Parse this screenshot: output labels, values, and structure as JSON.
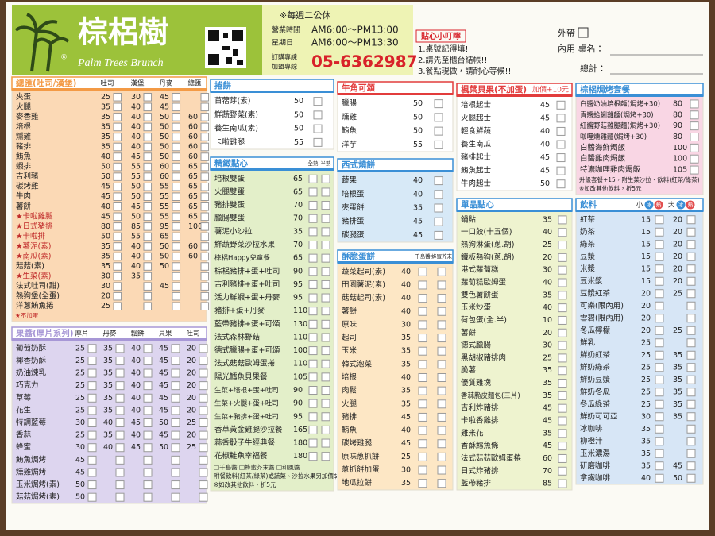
{
  "header": {
    "brand": "棕梠樹",
    "brand_en": "Palm Trees Brunch",
    "registered": "®",
    "closed": "※每週二公休",
    "hours_label": "營業時間",
    "hours": "AM6:00～PM13:00",
    "sunday_label": "星期日",
    "sunday_hours": "AM6:00～PM13:30",
    "order_line": "訂購專線",
    "franchise_line": "加盟專線",
    "phone": "05-6362987",
    "tips_title": "貼心小叮嚀",
    "tips": [
      "1.桌號記得填!!",
      "2.請先至櫃台結帳!!",
      "3.餐點現做，請耐心等候!!"
    ],
    "takeout": "外帶",
    "dine_in": "內用 桌名：",
    "total": "總計："
  },
  "sections": [
    {
      "title": "總匯(吐司/漢堡)",
      "columns": [
        "吐司",
        "漢堡",
        "丹麥",
        "總匯"
      ],
      "rows": [
        {
          "name": "夾蛋",
          "prices": [
            25,
            30,
            45,
            null
          ]
        },
        {
          "name": "火腿",
          "prices": [
            35,
            40,
            45,
            null
          ]
        },
        {
          "name": "麥香雞",
          "prices": [
            35,
            40,
            50,
            60
          ]
        },
        {
          "name": "培根",
          "prices": [
            35,
            40,
            50,
            60
          ]
        },
        {
          "name": "燻雞",
          "prices": [
            35,
            40,
            50,
            60
          ]
        },
        {
          "name": "豬排",
          "prices": [
            35,
            40,
            50,
            60
          ]
        },
        {
          "name": "鮪魚",
          "prices": [
            40,
            45,
            50,
            60
          ]
        },
        {
          "name": "蝦排",
          "prices": [
            50,
            55,
            60,
            65
          ]
        },
        {
          "name": "吉利豬",
          "prices": [
            50,
            55,
            60,
            65
          ]
        },
        {
          "name": "碳烤雞",
          "prices": [
            45,
            50,
            55,
            65
          ]
        },
        {
          "name": "牛肉",
          "prices": [
            45,
            50,
            55,
            65
          ]
        },
        {
          "name": "薯餅",
          "prices": [
            40,
            45,
            55,
            65
          ]
        },
        {
          "name": "★卡啦雞腿",
          "prices": [
            45,
            50,
            55,
            65
          ]
        },
        {
          "name": "★日式豬排",
          "prices": [
            80,
            85,
            95,
            100
          ]
        },
        {
          "name": "★卡啦排",
          "prices": [
            50,
            55,
            65,
            null
          ]
        },
        {
          "name": "★薯泥(素)",
          "prices": [
            35,
            40,
            50,
            60
          ]
        },
        {
          "name": "★南瓜(素)",
          "prices": [
            35,
            40,
            50,
            60
          ]
        },
        {
          "name": "菇菇(素)",
          "prices": [
            35,
            40,
            50,
            null
          ]
        },
        {
          "name": "★生菜(素)",
          "prices": [
            30,
            35,
            null,
            null
          ]
        },
        {
          "name": "法式吐司(甜)",
          "prices": [
            30,
            null,
            45,
            null
          ]
        },
        {
          "name": "熱狗堡(全蛋)",
          "prices": [
            20,
            null,
            null,
            null
          ]
        },
        {
          "name": "洋蔥鮪魚捲",
          "prices": [
            25,
            null,
            null,
            null
          ]
        }
      ],
      "notes": [
        "★不加蛋"
      ]
    },
    {
      "title": "果醬(厚片系列)",
      "columns": [
        "厚片",
        "丹麥",
        "鬆餅",
        "貝果",
        "吐司"
      ],
      "rows": [
        {
          "name": "葡萄奶酥",
          "prices": [
            25,
            35,
            40,
            45,
            20
          ]
        },
        {
          "name": "椰香奶酥",
          "prices": [
            25,
            35,
            40,
            45,
            20
          ]
        },
        {
          "name": "奶油煉乳",
          "prices": [
            25,
            35,
            40,
            45,
            20
          ]
        },
        {
          "name": "巧克力",
          "prices": [
            25,
            35,
            40,
            45,
            20
          ]
        },
        {
          "name": "草莓",
          "prices": [
            25,
            35,
            40,
            45,
            20
          ]
        },
        {
          "name": "花生",
          "prices": [
            25,
            35,
            40,
            45,
            20
          ]
        },
        {
          "name": "特調藍莓",
          "prices": [
            30,
            40,
            45,
            50,
            25
          ]
        },
        {
          "name": "香蒜",
          "prices": [
            25,
            35,
            40,
            45,
            20
          ]
        },
        {
          "name": "蜂蜜",
          "prices": [
            30,
            40,
            45,
            50,
            25
          ]
        },
        {
          "name": "鮪魚焗烤",
          "prices": [
            45,
            null,
            null,
            null,
            null
          ]
        },
        {
          "name": "燻雞焗烤",
          "prices": [
            45,
            null,
            null,
            null,
            null
          ]
        },
        {
          "name": "玉米焗烤(素)",
          "prices": [
            50,
            null,
            null,
            null,
            null
          ]
        },
        {
          "name": "菇菇焗烤(素)",
          "prices": [
            50,
            null,
            null,
            null,
            null
          ]
        }
      ]
    },
    {
      "title": "捲餅",
      "rows": [
        {
          "name": "苜蓿芽(素)",
          "prices": [
            50
          ]
        },
        {
          "name": "鮮蔬野菜(素)",
          "prices": [
            50
          ]
        },
        {
          "name": "養生南瓜(素)",
          "prices": [
            50
          ]
        },
        {
          "name": "卡啦雞腿",
          "prices": [
            55
          ]
        }
      ]
    },
    {
      "title": "精緻點心",
      "columns": [
        "全熟",
        "半熟"
      ],
      "rows": [
        {
          "name": "培根雙蛋",
          "prices": [
            65
          ]
        },
        {
          "name": "火腿雙蛋",
          "prices": [
            65
          ]
        },
        {
          "name": "豬排雙蛋",
          "prices": [
            70
          ]
        },
        {
          "name": "臘腸雙蛋",
          "prices": [
            70
          ]
        },
        {
          "name": "薯泥小沙拉",
          "prices": [
            35
          ]
        },
        {
          "name": "鮮蔬野菜沙拉水果",
          "prices": [
            70
          ]
        },
        {
          "name": "棕梠Happy兒童餐",
          "prices": [
            65
          ]
        },
        {
          "name": "棕梠豬排+蛋+吐司",
          "prices": [
            90
          ]
        },
        {
          "name": "吉利豬排+蛋+吐司",
          "prices": [
            95
          ]
        },
        {
          "name": "活力鮮蝦+蛋+丹麥",
          "prices": [
            95
          ]
        },
        {
          "name": "豬排+蛋+丹麥",
          "prices": [
            110
          ]
        },
        {
          "name": "藍帶豬排+蛋+可頌",
          "prices": [
            130
          ]
        },
        {
          "name": "法式森林野菇",
          "prices": [
            110
          ]
        },
        {
          "name": "德式臘腸+蛋+可頌",
          "prices": [
            100
          ]
        },
        {
          "name": "法式菇菇歐姆蛋捲",
          "prices": [
            110
          ]
        },
        {
          "name": "陽光鱈魚貝果餐",
          "prices": [
            105
          ]
        },
        {
          "name": "生菜+培根+蛋+吐司",
          "prices": [
            90
          ]
        },
        {
          "name": "生菜+火腿+蛋+吐司",
          "prices": [
            90
          ]
        },
        {
          "name": "生菜+豬排+蛋+吐司",
          "prices": [
            95
          ]
        },
        {
          "name": "香草黃金雞腿沙拉餐",
          "prices": [
            165
          ]
        },
        {
          "name": "蒜香骰子牛經典餐",
          "prices": [
            180
          ]
        },
        {
          "name": "花椒鮭魚幸福餐",
          "prices": [
            180
          ]
        }
      ],
      "notes": [
        "□千島醬  □蜂蜜芥末醬  □和風醬",
        "附餐飲料(紅茶/綠茶)或蔬菜、沙拉水果另加價$5",
        "※如改其他飲料，折5元"
      ]
    },
    {
      "title": "牛角可頌",
      "rows": [
        {
          "name": "臘腸",
          "prices": [
            50
          ]
        },
        {
          "name": "燻雞",
          "prices": [
            50
          ]
        },
        {
          "name": "鮪魚",
          "prices": [
            50
          ]
        },
        {
          "name": "洋芋",
          "prices": [
            55
          ]
        }
      ]
    },
    {
      "title": "西式燒餅",
      "rows": [
        {
          "name": "蔬果",
          "prices": [
            40
          ]
        },
        {
          "name": "培根蛋",
          "prices": [
            40
          ]
        },
        {
          "name": "夾蛋餅",
          "prices": [
            35
          ]
        },
        {
          "name": "豬排蛋",
          "prices": [
            45
          ]
        },
        {
          "name": "碳腿蛋",
          "prices": [
            45
          ]
        }
      ]
    },
    {
      "title": "酥脆蛋餅",
      "columns": [
        "千島醬",
        "蜂蜜芥末"
      ],
      "rows": [
        {
          "name": "蔬菜起司(素)",
          "prices": [
            40
          ]
        },
        {
          "name": "田園薯泥(素)",
          "prices": [
            40
          ]
        },
        {
          "name": "菇菇起司(素)",
          "prices": [
            40
          ]
        },
        {
          "name": "薯餅",
          "prices": [
            40
          ]
        },
        {
          "name": "原味",
          "prices": [
            30
          ]
        },
        {
          "name": "起司",
          "prices": [
            35
          ]
        },
        {
          "name": "玉米",
          "prices": [
            35
          ]
        },
        {
          "name": "韓式泡菜",
          "prices": [
            35
          ]
        },
        {
          "name": "培根",
          "prices": [
            40
          ]
        },
        {
          "name": "肉鬆",
          "prices": [
            35
          ]
        },
        {
          "name": "火腿",
          "prices": [
            35
          ]
        },
        {
          "name": "豬排",
          "prices": [
            45
          ]
        },
        {
          "name": "鮪魚",
          "prices": [
            40
          ]
        },
        {
          "name": "碳烤雞腿",
          "prices": [
            45
          ]
        },
        {
          "name": "原味蔥抓餅",
          "prices": [
            25
          ]
        },
        {
          "name": "蔥抓餅加蛋",
          "prices": [
            30
          ]
        },
        {
          "name": "地瓜拉餅",
          "prices": [
            35
          ]
        }
      ]
    },
    {
      "title": "楓葉貝果(不加蛋)",
      "extra": "加價+10元",
      "rows": [
        {
          "name": "培根起士",
          "prices": [
            45
          ]
        },
        {
          "name": "火腿起士",
          "prices": [
            45
          ]
        },
        {
          "name": "輕食鮮蔬",
          "prices": [
            40
          ]
        },
        {
          "name": "養生南瓜",
          "prices": [
            40
          ]
        },
        {
          "name": "豬排起士",
          "prices": [
            45
          ]
        },
        {
          "name": "鮪魚起士",
          "prices": [
            45
          ]
        },
        {
          "name": "牛肉起士",
          "prices": [
            50
          ]
        }
      ]
    },
    {
      "title": "單品點心",
      "rows": [
        {
          "name": "鍋貼",
          "prices": [
            35
          ]
        },
        {
          "name": "一口餃(十五個)",
          "prices": [
            40
          ]
        },
        {
          "name": "熱狗淋蛋(蔥.胡)",
          "prices": [
            25
          ]
        },
        {
          "name": "鐵板熱狗(蔥.胡)",
          "prices": [
            20
          ]
        },
        {
          "name": "港式蘿蔔糕",
          "prices": [
            30
          ]
        },
        {
          "name": "蘿蔔糕歐姆蛋",
          "prices": [
            40
          ]
        },
        {
          "name": "雙色薯餅蛋",
          "prices": [
            35
          ]
        },
        {
          "name": "玉米炒蛋",
          "prices": [
            40
          ]
        },
        {
          "name": "荷包蛋(全.半)",
          "prices": [
            10
          ]
        },
        {
          "name": "薯餅",
          "prices": [
            20
          ]
        },
        {
          "name": "德式臘腸",
          "prices": [
            30
          ]
        },
        {
          "name": "黑胡椒豬排肉",
          "prices": [
            25
          ]
        },
        {
          "name": "脆薯",
          "prices": [
            35
          ]
        },
        {
          "name": "優質雞塊",
          "prices": [
            35
          ]
        },
        {
          "name": "香蒜脆皮麵包(三片)",
          "prices": [
            35
          ]
        },
        {
          "name": "吉利炸豬排",
          "prices": [
            45
          ]
        },
        {
          "name": "卡啦香雞排",
          "prices": [
            45
          ]
        },
        {
          "name": "雞米花",
          "prices": [
            35
          ]
        },
        {
          "name": "香酥鱈魚條",
          "prices": [
            45
          ]
        },
        {
          "name": "法式菇菇歐姆蛋捲",
          "prices": [
            60
          ]
        },
        {
          "name": "日式炸豬排",
          "prices": [
            70
          ]
        },
        {
          "name": "藍帶豬排",
          "prices": [
            85
          ]
        }
      ]
    },
    {
      "title": "棕梠焗烤套餐",
      "rows": [
        {
          "name": "白醬奶油培根麵(焗烤+30)",
          "prices": [
            80
          ]
        },
        {
          "name": "青醬蛤蜊雞麵(焗烤+30)",
          "prices": [
            80
          ]
        },
        {
          "name": "紅醬野菇雞腿麵(焗烤+30)",
          "prices": [
            90
          ]
        },
        {
          "name": "咖哩燻雞麵(焗烤+30)",
          "prices": [
            80
          ]
        },
        {
          "name": "白醬海鮮焗飯",
          "prices": [
            100
          ]
        },
        {
          "name": "白醬雞肉焗飯",
          "prices": [
            100
          ]
        },
        {
          "name": "特濃咖哩雞肉焗飯",
          "prices": [
            105
          ]
        }
      ],
      "notes": [
        "升級套餐+15，附生菜沙拉、飲料(紅茶/綠茶)",
        "※如改其他飲料，折5元"
      ]
    },
    {
      "title": "飲料",
      "columns": [
        "小",
        "大"
      ],
      "tags": [
        "冰",
        "熱"
      ],
      "rows": [
        {
          "name": "紅茶",
          "prices": [
            15,
            20
          ]
        },
        {
          "name": "奶茶",
          "prices": [
            15,
            20
          ]
        },
        {
          "name": "綠茶",
          "prices": [
            15,
            20
          ]
        },
        {
          "name": "豆漿",
          "prices": [
            15,
            20
          ]
        },
        {
          "name": "米漿",
          "prices": [
            15,
            20
          ]
        },
        {
          "name": "豆米漿",
          "prices": [
            15,
            20
          ]
        },
        {
          "name": "豆漿紅茶",
          "prices": [
            20,
            25
          ]
        },
        {
          "name": "可樂(限內用)",
          "prices": [
            20,
            null
          ]
        },
        {
          "name": "雪碧(限內用)",
          "prices": [
            20,
            null
          ]
        },
        {
          "name": "冬瓜檸檬",
          "prices": [
            20,
            25
          ]
        },
        {
          "name": "鮮乳",
          "prices": [
            25,
            null
          ]
        },
        {
          "name": "鮮奶紅茶",
          "prices": [
            25,
            35
          ]
        },
        {
          "name": "鮮奶綠茶",
          "prices": [
            25,
            35
          ]
        },
        {
          "name": "鮮奶豆漿",
          "prices": [
            25,
            35
          ]
        },
        {
          "name": "鮮奶冬瓜",
          "prices": [
            25,
            35
          ]
        },
        {
          "name": "冬瓜綠茶",
          "prices": [
            25,
            35
          ]
        },
        {
          "name": "鮮奶可可亞",
          "prices": [
            30,
            35
          ]
        },
        {
          "name": "冰咖啡",
          "prices": [
            35,
            null
          ]
        },
        {
          "name": "柳橙汁",
          "prices": [
            35,
            null
          ]
        },
        {
          "name": "玉米濃湯",
          "prices": [
            35,
            null
          ]
        },
        {
          "name": "研磨咖啡",
          "prices": [
            35,
            45
          ]
        },
        {
          "name": "拿鐵咖啡",
          "prices": [
            40,
            50
          ]
        }
      ]
    }
  ]
}
